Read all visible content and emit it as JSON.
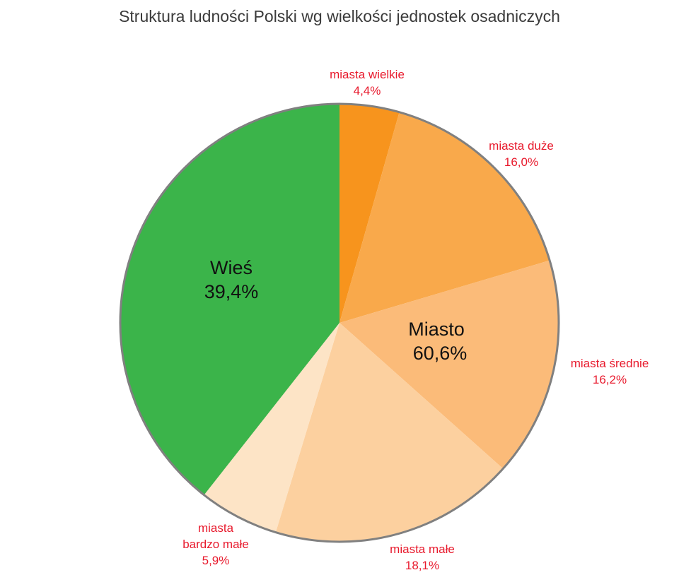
{
  "chart_data": {
    "type": "pie",
    "title": "Struktura ludności Polski wg wielkości jednostek osadniczych",
    "slices": [
      {
        "label_lines": [
          "miasta wielkie"
        ],
        "value_text": "4,4%",
        "value": 4.4,
        "color": "#f7941d"
      },
      {
        "label_lines": [
          "miasta duże"
        ],
        "value_text": "16,0%",
        "value": 16.0,
        "color": "#f9a94b"
      },
      {
        "label_lines": [
          "miasta średnie"
        ],
        "value_text": "16,2%",
        "value": 16.2,
        "color": "#fbbb79"
      },
      {
        "label_lines": [
          "miasta małe"
        ],
        "value_text": "18,1%",
        "value": 18.1,
        "color": "#fcd09f"
      },
      {
        "label_lines": [
          "miasta",
          "bardzo małe"
        ],
        "value_text": "5,9%",
        "value": 5.9,
        "color": "#fde4c6"
      },
      {
        "label_lines": [
          "Wieś"
        ],
        "value_text": "39,4%",
        "value": 39.4,
        "color": "#3bb44a"
      }
    ],
    "groups": [
      {
        "label": "Miasto",
        "value_text": "60,6%",
        "value": 60.6
      },
      {
        "label": "Wieś",
        "value_text": "39,4%",
        "value": 39.4
      }
    ],
    "label_color": "#e8192c",
    "border_color": "#808080"
  }
}
